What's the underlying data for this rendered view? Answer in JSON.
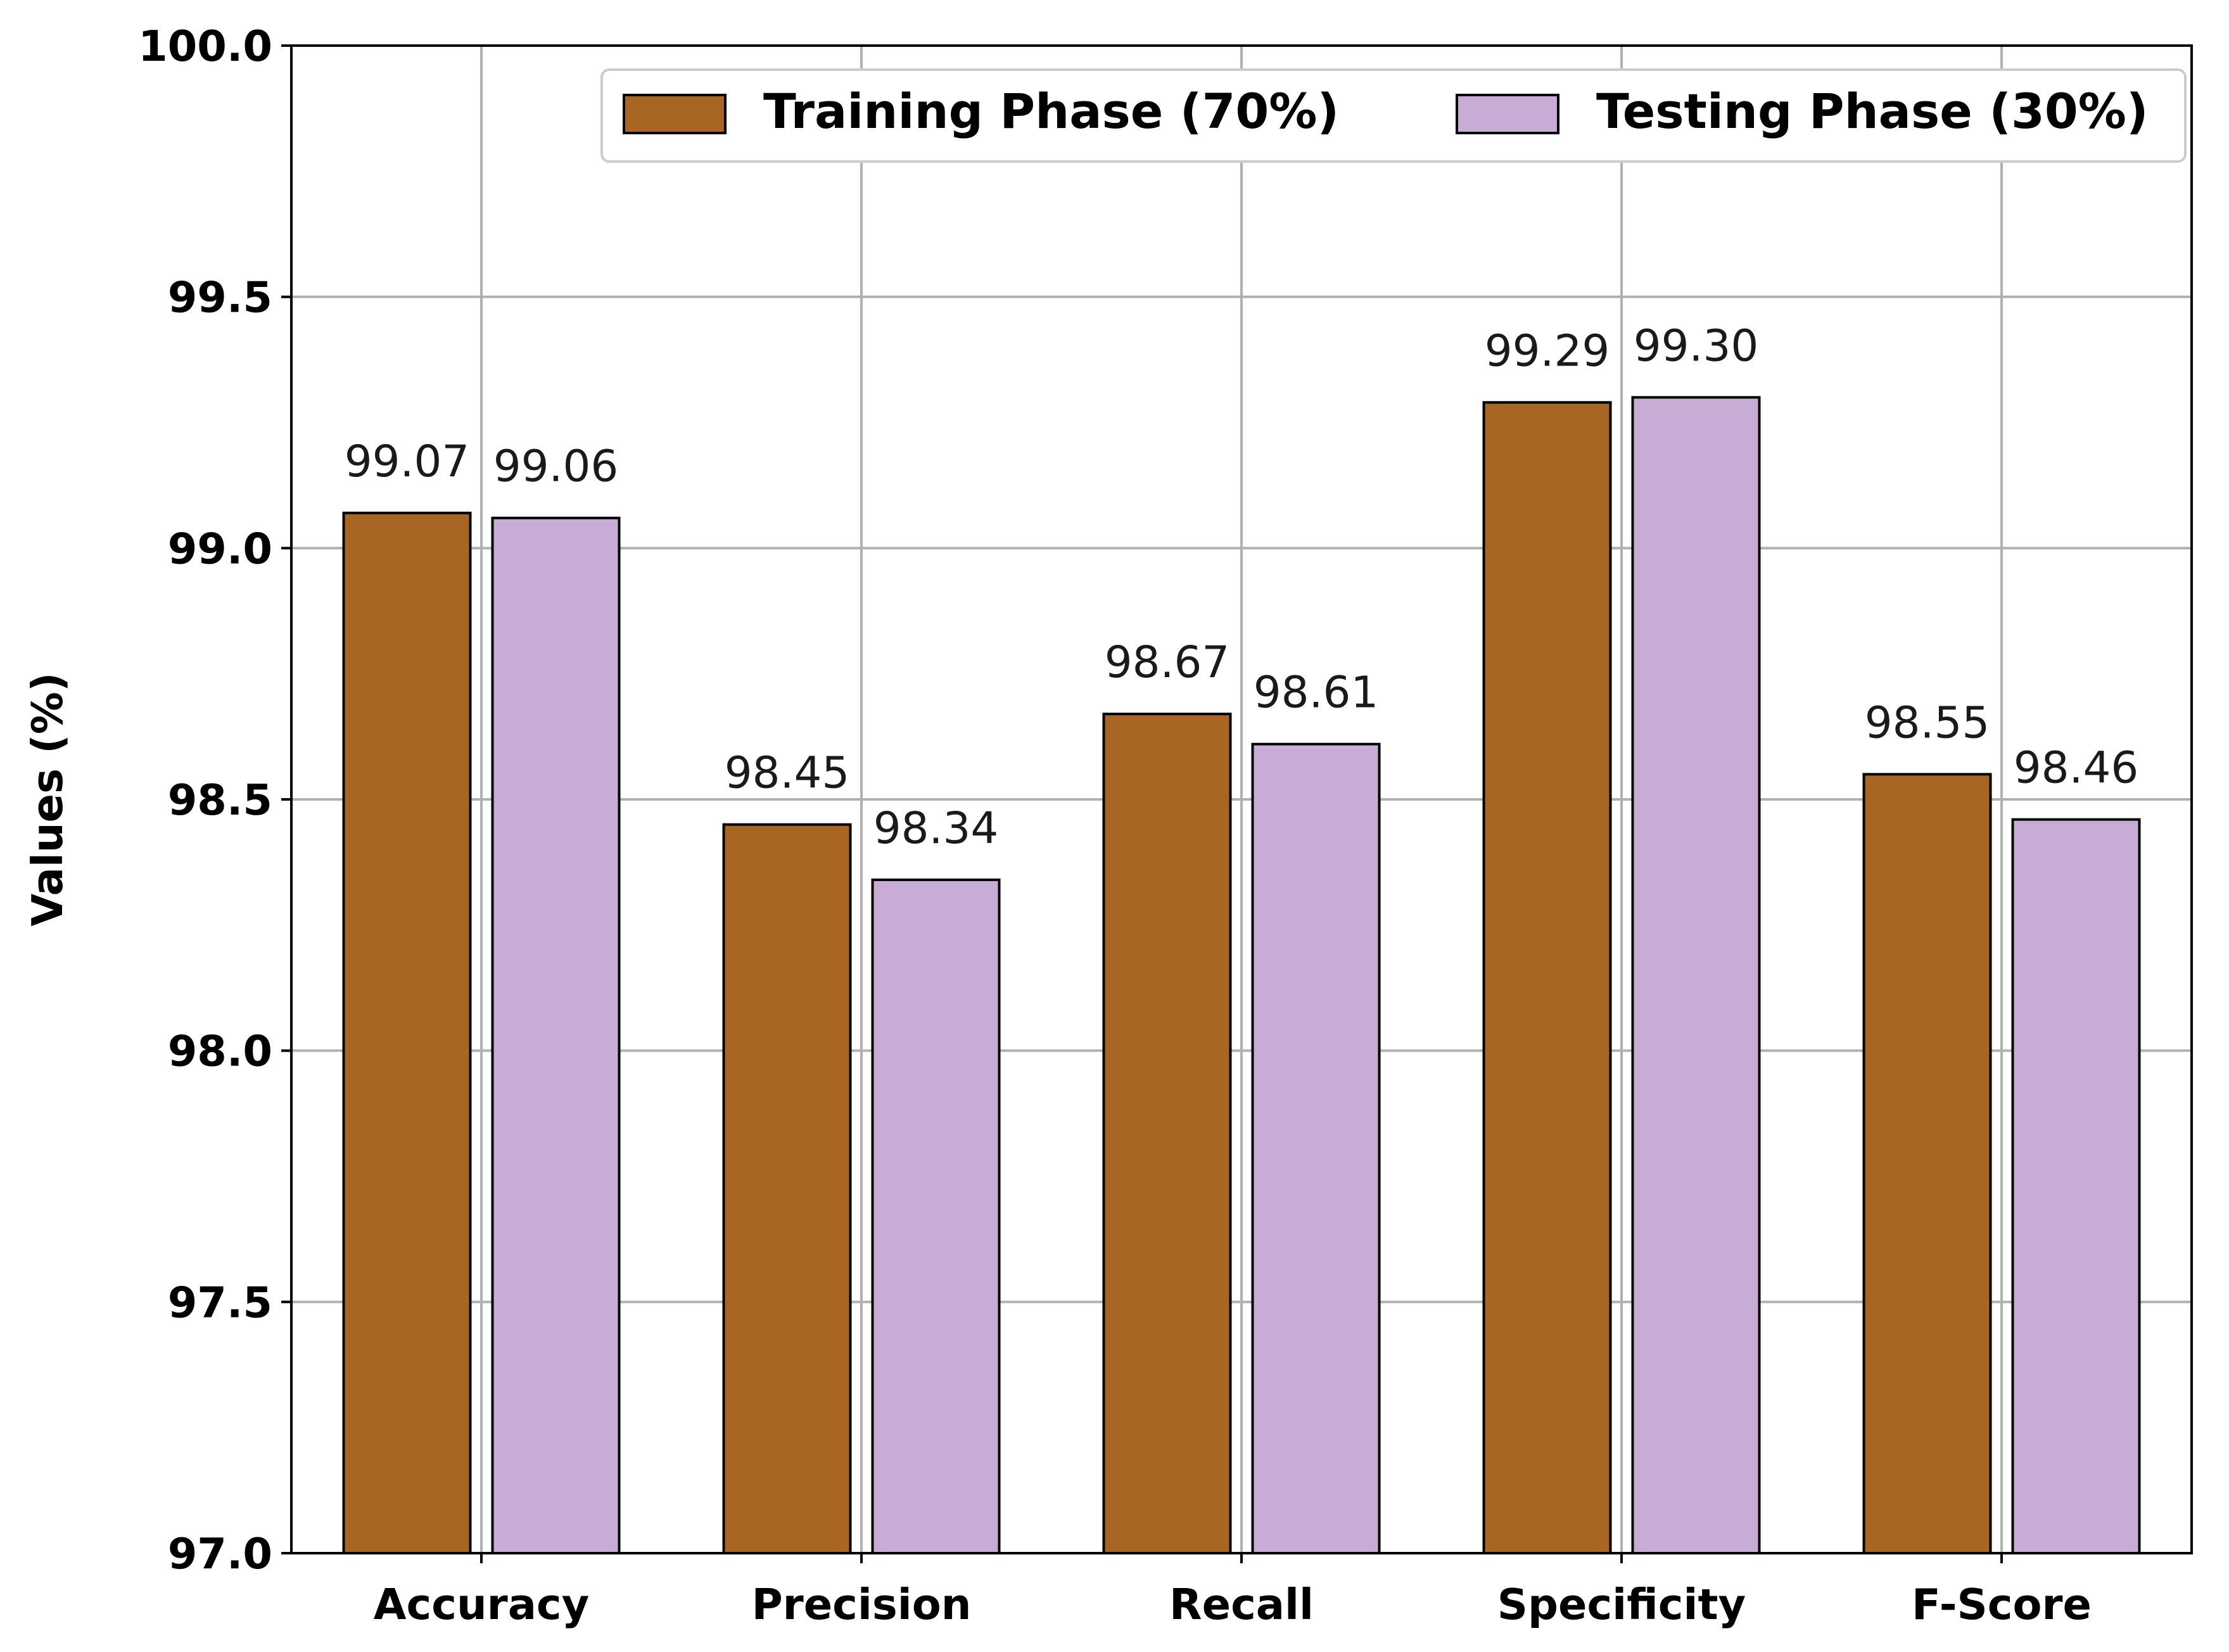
{
  "chart_data": {
    "type": "bar",
    "title": "",
    "xlabel": "",
    "ylabel": "Values (%)",
    "ylim": [
      97.0,
      100.0
    ],
    "yticks": [
      "97.0",
      "97.5",
      "98.0",
      "98.5",
      "99.0",
      "99.5",
      "100.0"
    ],
    "categories": [
      "Accuracy",
      "Precision",
      "Recall",
      "Specificity",
      "F-Score"
    ],
    "grid": true,
    "legend_position": "top-right",
    "series": [
      {
        "name": "Training Phase (70%)",
        "color": "#a86523",
        "values": [
          99.07,
          98.45,
          98.67,
          99.29,
          98.55
        ],
        "labels": [
          "99.07",
          "98.45",
          "98.67",
          "99.29",
          "98.55"
        ]
      },
      {
        "name": "Testing Phase (30%)",
        "color": "#c7add6",
        "values": [
          99.06,
          98.34,
          98.61,
          99.3,
          98.46
        ],
        "labels": [
          "99.06",
          "98.34",
          "98.61",
          "99.30",
          "98.46"
        ]
      }
    ]
  }
}
